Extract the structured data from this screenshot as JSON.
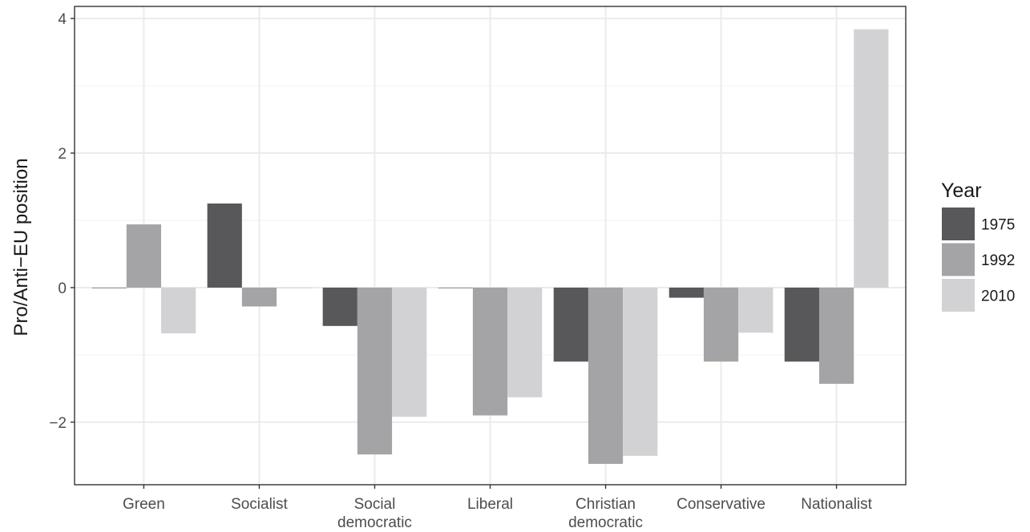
{
  "chart_data": {
    "type": "bar",
    "ylabel": "Pro/Anti−EU position",
    "xlabel": "",
    "categories": [
      [
        "Green"
      ],
      [
        "Socialist"
      ],
      [
        "Social",
        "democratic"
      ],
      [
        "Liberal"
      ],
      [
        "Christian",
        "democratic"
      ],
      [
        "Conservative"
      ],
      [
        "Nationalist"
      ]
    ],
    "series": [
      {
        "name": "1975",
        "color": "#58585a",
        "values": [
          0,
          1.25,
          -0.57,
          0,
          -1.1,
          -0.15,
          -1.1
        ]
      },
      {
        "name": "1992",
        "color": "#a4a4a7",
        "values": [
          0.94,
          -0.28,
          -2.48,
          -1.9,
          -2.62,
          -1.1,
          -1.43
        ]
      },
      {
        "name": "2010",
        "color": "#d2d2d4",
        "values": [
          -0.68,
          0,
          -1.92,
          -1.63,
          -2.5,
          -0.67,
          3.84
        ]
      }
    ],
    "ylim": [
      -2.93,
      4.18
    ],
    "yticks": [
      -2,
      0,
      2,
      4
    ],
    "ytick_labels": [
      "−2",
      "0",
      "2",
      "4"
    ],
    "grid": true,
    "legend": {
      "title": "Year",
      "position": "right"
    }
  }
}
